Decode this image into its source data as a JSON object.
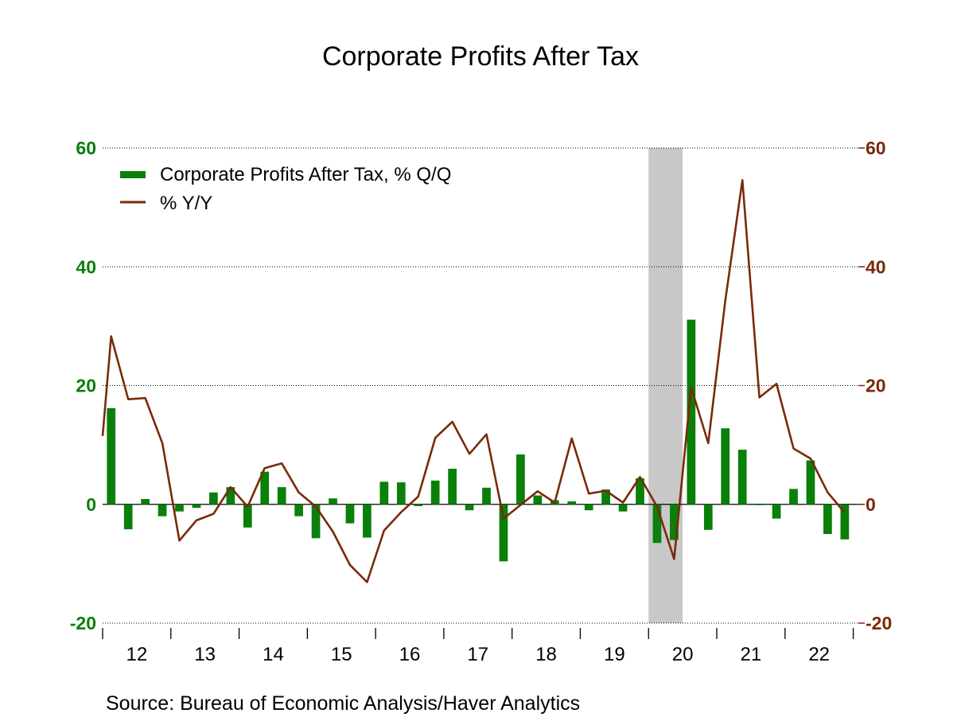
{
  "title": "Corporate Profits After Tax",
  "source": "Source:  Bureau of Economic Analysis/Haver Analytics",
  "colors": {
    "bars": "#0a7f0a",
    "line": "#7a2a08",
    "left_axis": "#0a7f0a",
    "right_axis": "#7a2a08",
    "recession_shade": "#c8c8c8",
    "gridline": "#000000"
  },
  "chart_data": {
    "type": "bar+line",
    "title": "Corporate Profits After Tax",
    "x_tick_labels": [
      "12",
      "13",
      "14",
      "15",
      "16",
      "17",
      "18",
      "19",
      "20",
      "21",
      "22"
    ],
    "quarters": [
      "2012Q1",
      "2012Q2",
      "2012Q3",
      "2012Q4",
      "2013Q1",
      "2013Q2",
      "2013Q3",
      "2013Q4",
      "2014Q1",
      "2014Q2",
      "2014Q3",
      "2014Q4",
      "2015Q1",
      "2015Q2",
      "2015Q3",
      "2015Q4",
      "2016Q1",
      "2016Q2",
      "2016Q3",
      "2016Q4",
      "2017Q1",
      "2017Q2",
      "2017Q3",
      "2017Q4",
      "2018Q1",
      "2018Q2",
      "2018Q3",
      "2018Q4",
      "2019Q1",
      "2019Q2",
      "2019Q3",
      "2019Q4",
      "2020Q1",
      "2020Q2",
      "2020Q3",
      "2020Q4",
      "2021Q1",
      "2021Q2",
      "2021Q3",
      "2021Q4",
      "2022Q1",
      "2022Q2",
      "2022Q3",
      "2022Q4"
    ],
    "left_axis": {
      "ticks": [
        -20,
        0,
        20,
        40,
        60
      ],
      "range": [
        -20,
        60
      ]
    },
    "right_axis": {
      "ticks": [
        -20,
        0,
        20,
        40,
        60
      ],
      "range": [
        -20,
        60
      ]
    },
    "grid": "horizontal dotted",
    "legend_position": "top-left",
    "recession_shading": {
      "start": "2020Q1",
      "end": "2020Q2"
    },
    "series": [
      {
        "name": "Corporate Profits After Tax, % Q/Q",
        "kind": "bar",
        "axis": "left",
        "values": [
          16.2,
          -4.2,
          0.9,
          -2.0,
          -1.2,
          -0.6,
          2.0,
          2.9,
          -3.9,
          5.5,
          2.9,
          -2.0,
          -5.7,
          1.0,
          -3.2,
          -5.6,
          3.8,
          3.7,
          -0.3,
          4.0,
          6.0,
          -1.0,
          2.8,
          -9.6,
          8.4,
          1.5,
          0.7,
          0.5,
          -1.0,
          2.5,
          -1.2,
          4.4,
          -6.5,
          -6.0,
          31.1,
          -4.3,
          12.8,
          9.2,
          -0.1,
          -2.4,
          2.6,
          7.4,
          -5.0,
          -5.9
        ]
      },
      {
        "name": "% Y/Y",
        "kind": "line",
        "axis": "right",
        "values": [
          28.3,
          17.7,
          17.9,
          10.3,
          -6.1,
          -2.7,
          -1.6,
          2.9,
          -0.4,
          6.1,
          6.9,
          2.0,
          -0.4,
          -4.6,
          -10.2,
          -13.1,
          -4.4,
          -1.3,
          1.3,
          11.2,
          13.9,
          8.5,
          11.8,
          -2.4,
          -0.1,
          2.2,
          0.3,
          11.1,
          1.8,
          2.3,
          0.3,
          4.6,
          -0.4,
          -9.2,
          19.7,
          10.3,
          34.3,
          54.6,
          18.0,
          20.3,
          9.4,
          7.7,
          2.0,
          -1.4
        ]
      }
    ]
  }
}
